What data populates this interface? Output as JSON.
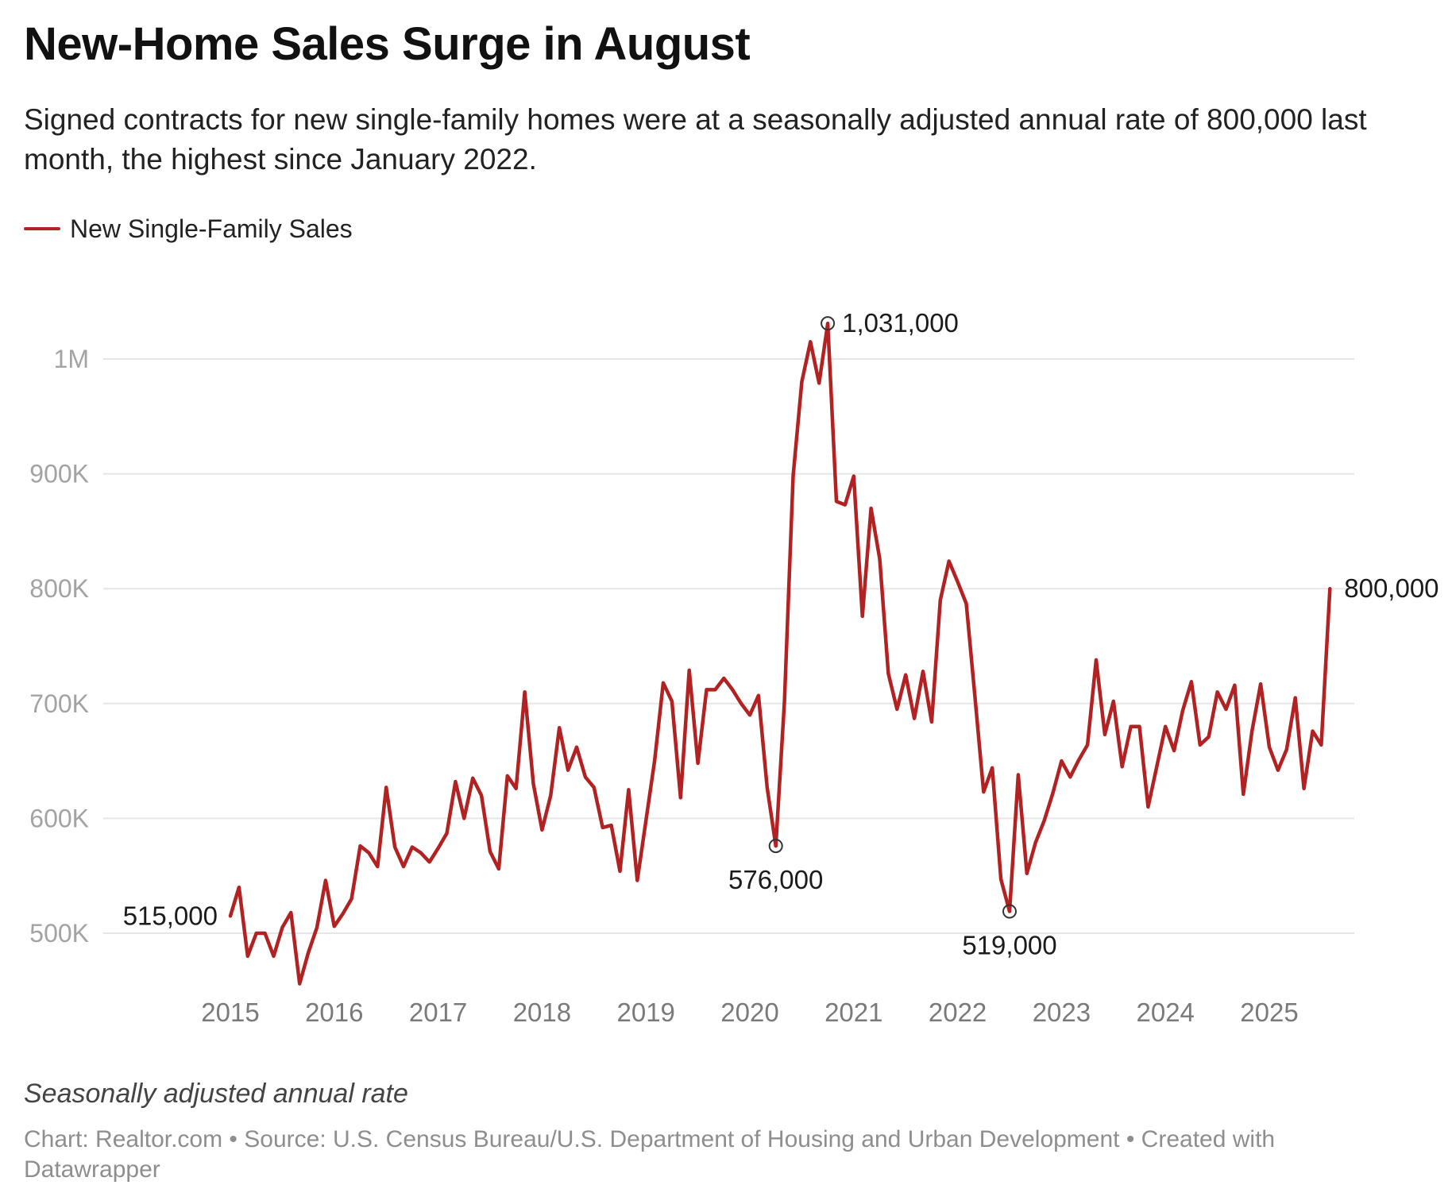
{
  "header": {
    "title": "New-Home Sales Surge in August",
    "subtitle": "Signed contracts for new single-family homes were at a seasonally adjusted annual rate of 800,000 last month, the highest since January 2022."
  },
  "footer": {
    "note": "Seasonally adjusted annual rate",
    "credit": "Chart: Realtor.com • Source: U.S. Census Bureau/U.S. Department of Housing and Urban Development • Created with Datawrapper"
  },
  "chart_data": {
    "type": "line",
    "title": "New-Home Sales Surge in August",
    "xlabel": "",
    "ylabel": "",
    "grid": true,
    "legend_position": "top-left",
    "colors": {
      "line": "#b22222",
      "grid": "#e6e6e6"
    },
    "y_axis": {
      "range": [
        450000,
        1040000
      ],
      "ticks": [
        500000,
        600000,
        700000,
        800000,
        900000,
        1000000
      ],
      "tick_labels": [
        "500K",
        "600K",
        "700K",
        "800K",
        "900K",
        "1M"
      ]
    },
    "x_axis": {
      "range": [
        2014.8,
        2025.8
      ],
      "ticks": [
        2015,
        2016,
        2017,
        2018,
        2019,
        2020,
        2021,
        2022,
        2023,
        2024,
        2025
      ],
      "tick_labels": [
        "2015",
        "2016",
        "2017",
        "2018",
        "2019",
        "2020",
        "2021",
        "2022",
        "2023",
        "2024",
        "2025"
      ]
    },
    "series": [
      {
        "name": "New Single-Family Sales",
        "x": [
          2015.0,
          2015.083,
          2015.167,
          2015.25,
          2015.333,
          2015.417,
          2015.5,
          2015.583,
          2015.667,
          2015.75,
          2015.833,
          2015.917,
          2016.0,
          2016.083,
          2016.167,
          2016.25,
          2016.333,
          2016.417,
          2016.5,
          2016.583,
          2016.667,
          2016.75,
          2016.833,
          2016.917,
          2017.0,
          2017.083,
          2017.167,
          2017.25,
          2017.333,
          2017.417,
          2017.5,
          2017.583,
          2017.667,
          2017.75,
          2017.833,
          2017.917,
          2018.0,
          2018.083,
          2018.167,
          2018.25,
          2018.333,
          2018.417,
          2018.5,
          2018.583,
          2018.667,
          2018.75,
          2018.833,
          2018.917,
          2019.0,
          2019.083,
          2019.167,
          2019.25,
          2019.333,
          2019.417,
          2019.5,
          2019.583,
          2019.667,
          2019.75,
          2019.833,
          2019.917,
          2020.0,
          2020.083,
          2020.167,
          2020.25,
          2020.333,
          2020.417,
          2020.5,
          2020.583,
          2020.667,
          2020.75,
          2020.833,
          2020.917,
          2021.0,
          2021.083,
          2021.167,
          2021.25,
          2021.333,
          2021.417,
          2021.5,
          2021.583,
          2021.667,
          2021.75,
          2021.833,
          2021.917,
          2022.0,
          2022.083,
          2022.167,
          2022.25,
          2022.333,
          2022.417,
          2022.5,
          2022.583,
          2022.667,
          2022.75,
          2022.833,
          2022.917,
          2023.0,
          2023.083,
          2023.167,
          2023.25,
          2023.333,
          2023.417,
          2023.5,
          2023.583,
          2023.667,
          2023.75,
          2023.833,
          2023.917,
          2024.0,
          2024.083,
          2024.167,
          2024.25,
          2024.333,
          2024.417,
          2024.5,
          2024.583,
          2024.667,
          2024.75,
          2024.833,
          2024.917,
          2025.0,
          2025.083,
          2025.167,
          2025.25,
          2025.333,
          2025.417,
          2025.5,
          2025.583
        ],
        "values": [
          515000,
          540000,
          480000,
          500000,
          500000,
          480000,
          505000,
          518000,
          456000,
          483000,
          505000,
          546000,
          506000,
          517000,
          530000,
          576000,
          570000,
          558000,
          627000,
          575000,
          558000,
          575000,
          570000,
          562000,
          574000,
          587000,
          632000,
          600000,
          635000,
          620000,
          571000,
          556000,
          637000,
          626000,
          710000,
          630000,
          590000,
          620000,
          679000,
          642000,
          662000,
          636000,
          627000,
          592000,
          594000,
          554000,
          625000,
          546000,
          598000,
          650000,
          718000,
          702000,
          618000,
          729000,
          648000,
          712000,
          712000,
          722000,
          712000,
          700000,
          690000,
          707000,
          627000,
          576000,
          702000,
          898000,
          980000,
          1015000,
          979000,
          1031000,
          876000,
          873000,
          898000,
          776000,
          870000,
          826000,
          726000,
          695000,
          725000,
          687000,
          728000,
          684000,
          790000,
          824000,
          806000,
          787000,
          706000,
          623000,
          644000,
          547000,
          519000,
          638000,
          552000,
          579000,
          598000,
          622000,
          650000,
          636000,
          651000,
          664000,
          738000,
          673000,
          702000,
          645000,
          680000,
          680000,
          610000,
          645000,
          680000,
          659000,
          694000,
          719000,
          664000,
          671000,
          710000,
          695000,
          716000,
          621000,
          676000,
          717000,
          662000,
          642000,
          660000,
          705000,
          626000,
          676000,
          664000,
          800000
        ]
      }
    ],
    "annotations": [
      {
        "x": 2015.0,
        "value": 515000,
        "label": "515,000",
        "marker": false,
        "label_position": "left"
      },
      {
        "x": 2020.25,
        "value": 576000,
        "label": "576,000",
        "marker": true,
        "label_position": "below"
      },
      {
        "x": 2020.75,
        "value": 1031000,
        "label": "1,031,000",
        "marker": true,
        "label_position": "right"
      },
      {
        "x": 2022.5,
        "value": 519000,
        "label": "519,000",
        "marker": true,
        "label_position": "below"
      },
      {
        "x": 2025.583,
        "value": 800000,
        "label": "800,000",
        "marker": false,
        "label_position": "right"
      }
    ]
  }
}
